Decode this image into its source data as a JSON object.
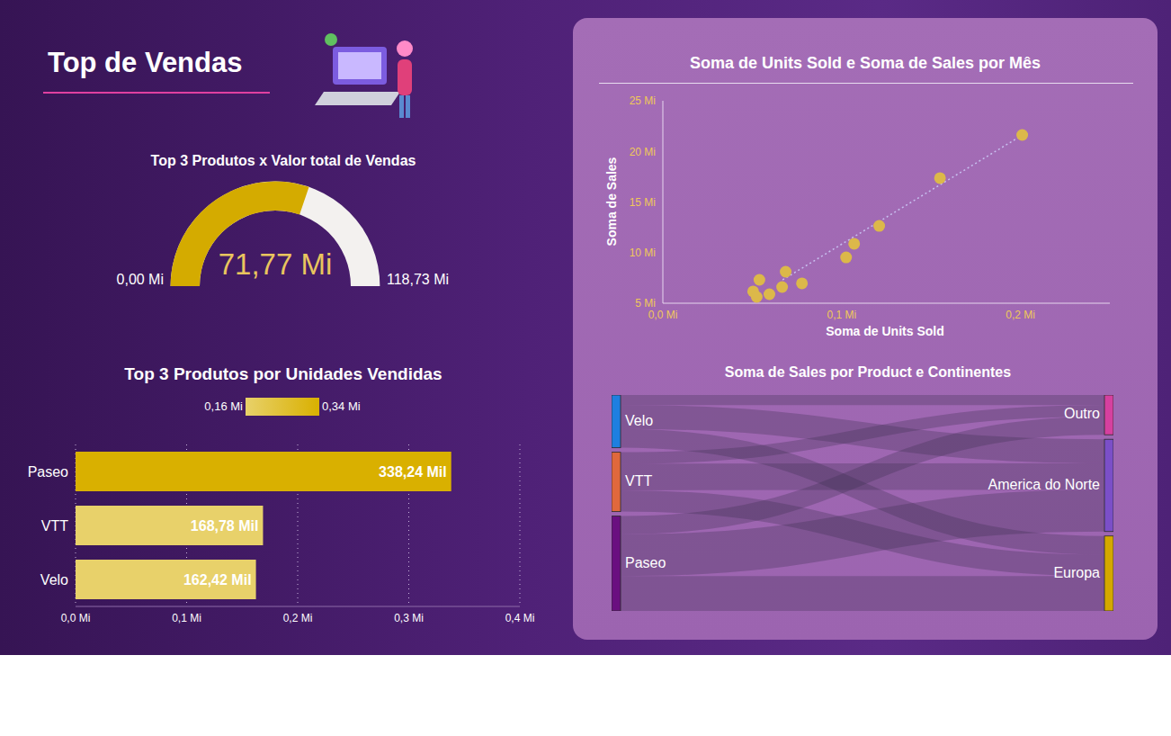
{
  "title": "Top de Vendas",
  "chart_data": [
    {
      "type": "gauge",
      "title": "Top 3 Produtos x Valor total de Vendas",
      "values": [
        71.77
      ],
      "value_labels": [
        "71,77 Mi"
      ],
      "ylim": [
        0,
        118.73
      ],
      "yticks": [
        {
          "value": 0,
          "label": "0,00 Mi"
        },
        {
          "value": 118.73,
          "label": "118,73 Mi"
        }
      ],
      "color": "#d4ab00"
    },
    {
      "type": "bar",
      "orientation": "horizontal",
      "title": "Top 3 Produtos por Unidades Vendidas",
      "categories": [
        "Paseo",
        "VTT",
        "Velo"
      ],
      "values": [
        0.33824,
        0.16878,
        0.16242
      ],
      "value_labels": [
        "338,24 Mil",
        "168,78 Mil",
        "162,42 Mil"
      ],
      "data_labels": true,
      "colors": [
        "#d9b000",
        "#e8d16a",
        "#e8d16a"
      ],
      "xlim": [
        0,
        0.4
      ],
      "xticks": [
        {
          "value": 0,
          "label": "0,0 Mi"
        },
        {
          "value": 0.1,
          "label": "0,1 Mi"
        },
        {
          "value": 0.2,
          "label": "0,2 Mi"
        },
        {
          "value": 0.3,
          "label": "0,3 Mi"
        },
        {
          "value": 0.4,
          "label": "0,4 Mi"
        }
      ],
      "grid": true,
      "color_scale": {
        "range": [
          0.16,
          0.34
        ],
        "ticks": [
          {
            "value": 0.16,
            "label": "0,16 Mi"
          },
          {
            "value": 0.34,
            "label": "0,34 Mi"
          }
        ],
        "colors": [
          "#e8d16a",
          "#d9b000"
        ]
      }
    },
    {
      "type": "scatter",
      "title": "Soma de Units Sold e Soma de Sales por Mês",
      "x_label": "Soma de Units Sold",
      "y_label": "Soma de Sales",
      "x": [
        0.201,
        0.155,
        0.121,
        0.107,
        0.1025,
        0.0778,
        0.0687,
        0.0667,
        0.0596,
        0.054,
        0.0505,
        0.0525
      ],
      "values": [
        21.62,
        17.36,
        12.64,
        10.87,
        9.53,
        6.96,
        8.11,
        6.6,
        5.89,
        7.31,
        6.16,
        5.62
      ],
      "color": "#dcb84a",
      "xlim": [
        0,
        0.25
      ],
      "xticks": [
        {
          "value": 0,
          "label": "0,0 Mi"
        },
        {
          "value": 0.1,
          "label": "0,1 Mi"
        },
        {
          "value": 0.2,
          "label": "0,2 Mi"
        }
      ],
      "ylim": [
        5,
        25
      ],
      "yticks": [
        {
          "value": 5,
          "label": "5 Mi"
        },
        {
          "value": 10,
          "label": "10 Mi"
        },
        {
          "value": 15,
          "label": "15 Mi"
        },
        {
          "value": 20,
          "label": "20 Mi"
        },
        {
          "value": 25,
          "label": "25 Mi"
        }
      ],
      "trend": {
        "x": [
          0.067,
          0.201
        ],
        "values": [
          7.31,
          21.6
        ],
        "color": "#c8c0f0",
        "line_style": "dotted"
      }
    },
    {
      "type": "sankey",
      "title": "Soma de Sales por Product e Continentes",
      "nodes": [
        {
          "name": "Velo",
          "color": "#1e7fe0"
        },
        {
          "name": "VTT",
          "color": "#e0683c"
        },
        {
          "name": "Paseo",
          "color": "#6a0f80"
        },
        {
          "name": "Outro",
          "color": "#d6409f"
        },
        {
          "name": "America do Norte",
          "color": "#7b4fc8"
        },
        {
          "name": "Europa",
          "color": "#d4a800"
        }
      ],
      "links": [
        {
          "source": 0,
          "target": 3,
          "value": 3.5
        },
        {
          "source": 0,
          "target": 4,
          "value": 8.3
        },
        {
          "source": 0,
          "target": 5,
          "value": 6.5
        },
        {
          "source": 1,
          "target": 3,
          "value": 4.0
        },
        {
          "source": 1,
          "target": 4,
          "value": 9.2
        },
        {
          "source": 1,
          "target": 5,
          "value": 7.4
        },
        {
          "source": 2,
          "target": 3,
          "value": 6.3
        },
        {
          "source": 2,
          "target": 4,
          "value": 14.5
        },
        {
          "source": 2,
          "target": 5,
          "value": 12.1
        }
      ]
    }
  ]
}
